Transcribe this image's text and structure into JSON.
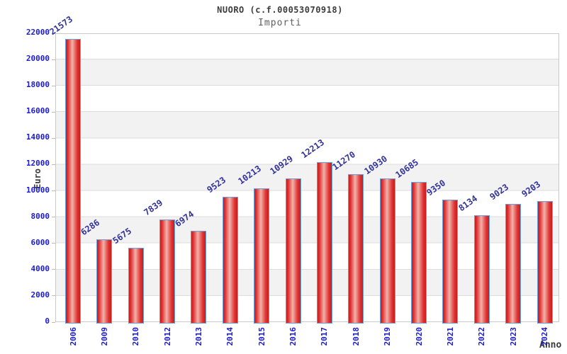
{
  "header": {
    "title": "NUORO (c.f.00053070918)",
    "subtitle": "Importi"
  },
  "chart_data": {
    "type": "bar",
    "title": "NUORO (c.f.00053070918)",
    "subtitle": "Importi",
    "xlabel": "Anno",
    "ylabel": "Euro",
    "ylim": [
      0,
      22000
    ],
    "y_ticks": [
      0,
      2000,
      4000,
      6000,
      8000,
      10000,
      12000,
      14000,
      16000,
      18000,
      20000,
      22000
    ],
    "categories": [
      "2006",
      "2009",
      "2010",
      "2012",
      "2013",
      "2014",
      "2015",
      "2016",
      "2017",
      "2018",
      "2019",
      "2020",
      "2021",
      "2022",
      "2023",
      "2024"
    ],
    "values": [
      21573,
      6286,
      5675,
      7839,
      6974,
      9523,
      10213,
      10929,
      12213,
      11270,
      10930,
      10685,
      9350,
      8134,
      9023,
      9203
    ],
    "grid": "horizontal-bands",
    "legend": "none",
    "colors": {
      "bar_fill_edge": "#c02020",
      "bar_fill_highlight": "#f0b3ab",
      "bar_border": "#66a3e0",
      "axis_tick_text": "#1a1ad2",
      "value_label_text": "#333399",
      "band_gray": "#f2f2f2",
      "band_white": "#ffffff",
      "gridline": "#dcdcdc",
      "title_text": "#3c3c3c"
    }
  }
}
